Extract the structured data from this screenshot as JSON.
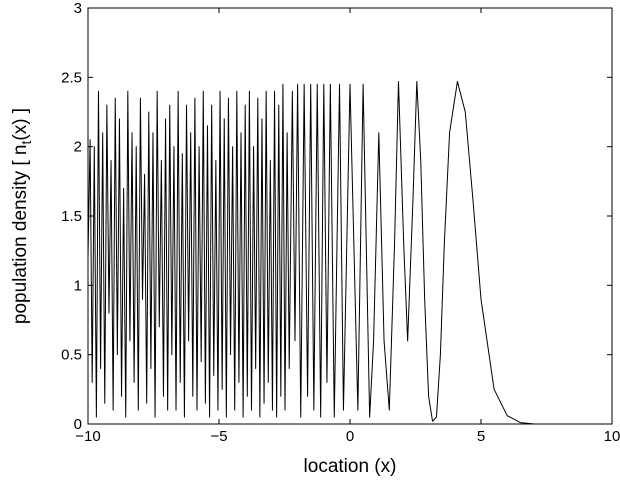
{
  "chart_data": {
    "type": "line",
    "xlabel": "location (x)",
    "ylabel": {
      "text": "population density [ n",
      "subscript": "t",
      "after": "(x) ]"
    },
    "xlim": [
      -10,
      10
    ],
    "xticks": [
      {
        "value": -10,
        "label": "−10"
      },
      {
        "value": -5,
        "label": "−5"
      },
      0,
      5,
      10
    ],
    "ylim": [
      0,
      3
    ],
    "yticks": [
      0,
      0.5,
      1,
      1.5,
      2,
      2.5,
      3
    ],
    "grid": false,
    "color": "#000000",
    "x": [
      -10,
      -9.92,
      -9.84,
      -9.76,
      -9.68,
      -9.6,
      -9.52,
      -9.44,
      -9.36,
      -9.28,
      -9.2,
      -9.12,
      -9.04,
      -8.96,
      -8.88,
      -8.8,
      -8.72,
      -8.64,
      -8.56,
      -8.48,
      -8.4,
      -8.32,
      -8.24,
      -8.16,
      -8.08,
      -8,
      -7.92,
      -7.84,
      -7.76,
      -7.68,
      -7.6,
      -7.52,
      -7.44,
      -7.36,
      -7.28,
      -7.2,
      -7.12,
      -7.04,
      -6.96,
      -6.88,
      -6.8,
      -6.72,
      -6.64,
      -6.56,
      -6.48,
      -6.4,
      -6.32,
      -6.24,
      -6.16,
      -6.08,
      -6,
      -5.92,
      -5.84,
      -5.76,
      -5.68,
      -5.6,
      -5.52,
      -5.44,
      -5.36,
      -5.28,
      -5.2,
      -5.12,
      -5.04,
      -4.96,
      -4.88,
      -4.8,
      -4.72,
      -4.64,
      -4.56,
      -4.48,
      -4.4,
      -4.32,
      -4.24,
      -4.16,
      -4.08,
      -4,
      -3.92,
      -3.84,
      -3.76,
      -3.68,
      -3.6,
      -3.52,
      -3.44,
      -3.36,
      -3.28,
      -3.2,
      -3.12,
      -3.04,
      -2.96,
      -2.88,
      -2.8,
      -2.72,
      -2.64,
      -2.56,
      -2.48,
      -2.4,
      -2.32,
      -2.2,
      -2.1,
      -2,
      -1.88,
      -1.75,
      -1.62,
      -1.5,
      -1.38,
      -1.25,
      -1.12,
      -1,
      -0.88,
      -0.75,
      -0.6,
      -0.4,
      -0.25,
      0,
      0.3,
      0.5,
      0.75,
      0.9,
      1.1,
      1.3,
      1.5,
      1.7,
      1.85,
      2.05,
      2.2,
      2.4,
      2.55,
      2.7,
      2.85,
      3,
      3.15,
      3.3,
      3.45,
      3.6,
      3.8,
      4.1,
      4.4,
      4.7,
      5,
      5.5,
      6,
      6.5,
      7,
      8,
      10
    ],
    "values": [
      1.2,
      2.05,
      0.3,
      2.0,
      0.05,
      2.4,
      0.4,
      2.1,
      0.15,
      2.3,
      0.8,
      1.9,
      0.1,
      2.35,
      0.5,
      2.2,
      0.2,
      1.7,
      0.05,
      2.4,
      0.6,
      2.1,
      0.3,
      2.0,
      0.1,
      2.35,
      0.9,
      1.8,
      0.15,
      2.25,
      0.4,
      2.1,
      0.05,
      2.4,
      0.7,
      1.9,
      0.2,
      2.2,
      0.1,
      2.3,
      0.5,
      2.0,
      0.1,
      2.4,
      0.3,
      1.95,
      0.05,
      2.3,
      0.6,
      2.1,
      0.2,
      2.35,
      0.1,
      2.0,
      0.45,
      2.4,
      0.15,
      2.15,
      0.05,
      2.3,
      0.35,
      1.9,
      0.1,
      2.4,
      0.25,
      2.2,
      0.05,
      2.35,
      0.5,
      2.0,
      0.1,
      2.4,
      0.3,
      2.1,
      0.05,
      2.3,
      0.2,
      2.4,
      0.1,
      2.0,
      0.4,
      2.35,
      0.05,
      2.2,
      0.15,
      2.4,
      0.3,
      1.9,
      0.1,
      2.4,
      0.05,
      2.3,
      0.2,
      2.45,
      0.1,
      2.1,
      0.4,
      2.4,
      0.6,
      2.45,
      0.05,
      2.45,
      0.2,
      2.45,
      0.1,
      2.45,
      0.05,
      2.45,
      0.3,
      2.45,
      0.05,
      2.45,
      0.1,
      2.45,
      0.1,
      2.45,
      0.05,
      0.6,
      2.1,
      0.6,
      0.1,
      1.3,
      2.47,
      1.3,
      0.6,
      1.6,
      2.47,
      1.9,
      0.9,
      0.2,
      0.02,
      0.05,
      0.5,
      1.3,
      2.1,
      2.47,
      2.25,
      1.6,
      0.9,
      0.25,
      0.06,
      0.01,
      0.001,
      0,
      0
    ]
  }
}
